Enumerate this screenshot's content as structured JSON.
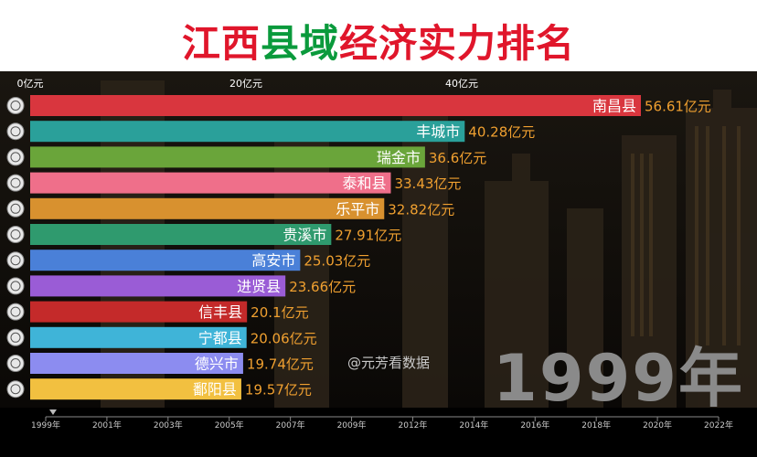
{
  "title": {
    "parts": [
      {
        "text": "江西",
        "color": "#e0162b"
      },
      {
        "text": "县域",
        "color": "#0a9a3c"
      },
      {
        "text": "经济实力排名",
        "color": "#e0162b"
      }
    ]
  },
  "watermark": "@元芳看数据",
  "current_year": "1999年",
  "timeline": {
    "labels": [
      "1999年",
      "2001年",
      "2003年",
      "2005年",
      "2007年",
      "2009年",
      "2012年",
      "2014年",
      "2016年",
      "2018年",
      "2020年",
      "2022年"
    ],
    "position": "1999年"
  },
  "chart_data": {
    "type": "bar",
    "orientation": "horizontal",
    "x_ticks": [
      "0亿元",
      "20亿元",
      "40亿元"
    ],
    "xlim": [
      0,
      60
    ],
    "value_suffix": "亿元",
    "categories": [
      "南昌县",
      "丰城市",
      "瑞金市",
      "泰和县",
      "乐平市",
      "贵溪市",
      "高安市",
      "进贤县",
      "信丰县",
      "宁都县",
      "德兴市",
      "鄱阳县"
    ],
    "values": [
      56.61,
      40.28,
      36.6,
      33.43,
      32.82,
      27.91,
      25.03,
      23.66,
      20.1,
      20.06,
      19.74,
      19.57
    ],
    "value_labels": [
      "56.61亿元",
      "40.28亿元",
      "36.6亿元",
      "33.43亿元",
      "32.82亿元",
      "27.91亿元",
      "25.03亿元",
      "23.66亿元",
      "20.1亿元",
      "20.06亿元",
      "19.74亿元",
      "19.57亿元"
    ],
    "colors": [
      "#d9363e",
      "#2aa09a",
      "#6aa53a",
      "#ef6f8a",
      "#d8912f",
      "#2f9a6e",
      "#4a80d8",
      "#9a5cd6",
      "#c42a2a",
      "#3fb4d8",
      "#8c8cf0",
      "#f2c040"
    ],
    "label_color": "#f0a030",
    "grid": false
  }
}
